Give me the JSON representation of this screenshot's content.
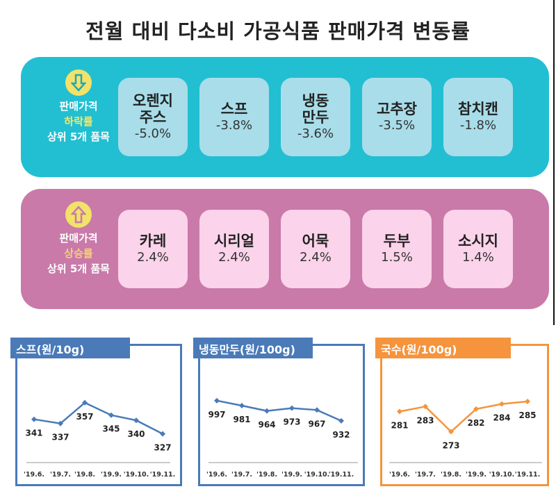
{
  "title": "전월 대비 다소비 가공식품 판매가격 변동률",
  "decrease_panel": {
    "icon": "arrow-down-icon",
    "label_line1": "판매가격",
    "label_line2": "하락률",
    "label_line3": "상위 5개 품목",
    "color": "#22bfd2",
    "items": [
      {
        "name": "오렌지\n주스",
        "value": "-5.0%"
      },
      {
        "name": "스프",
        "value": "-3.8%"
      },
      {
        "name": "냉동\n만두",
        "value": "-3.6%"
      },
      {
        "name": "고추장",
        "value": "-3.5%"
      },
      {
        "name": "참치캔",
        "value": "-1.8%"
      }
    ]
  },
  "increase_panel": {
    "icon": "arrow-up-icon",
    "label_line1": "판매가격",
    "label_line2": "상승률",
    "label_line3": "상위 5개 품목",
    "color": "#c97aa9",
    "items": [
      {
        "name": "카레",
        "value": "2.4%"
      },
      {
        "name": "시리얼",
        "value": "2.4%"
      },
      {
        "name": "어묵",
        "value": "2.4%"
      },
      {
        "name": "두부",
        "value": "1.5%"
      },
      {
        "name": "소시지",
        "value": "1.4%"
      }
    ]
  },
  "chart_data": [
    {
      "type": "line",
      "title": "스프(원/10g)",
      "color": "#4a7ab8",
      "categories": [
        "'19.6.",
        "'19.7.",
        "'19.8.",
        "'19.9.",
        "'19.10.",
        "'19.11."
      ],
      "values": [
        341,
        337,
        357,
        345,
        340,
        327
      ],
      "ylim": [
        300,
        397
      ],
      "grid": false
    },
    {
      "type": "line",
      "title": "냉동만두(원/100g)",
      "color": "#4a7ab8",
      "categories": [
        "'19.6.",
        "'19.7.",
        "'19.8.",
        "'19.9.",
        "'19.10.",
        "'19.11."
      ],
      "values": [
        997,
        981,
        964,
        973,
        967,
        932
      ],
      "ylim": [
        800,
        1124
      ],
      "grid": false
    },
    {
      "type": "line",
      "title": "국수(원/100g)",
      "color": "#f5943c",
      "categories": [
        "'19.6.",
        "'19.7.",
        "'19.8.",
        "'19.9.",
        "'19.10.",
        "'19.11."
      ],
      "values": [
        281,
        283,
        273,
        282,
        284,
        285
      ],
      "ylim": [
        261,
        301
      ],
      "grid": false
    }
  ]
}
